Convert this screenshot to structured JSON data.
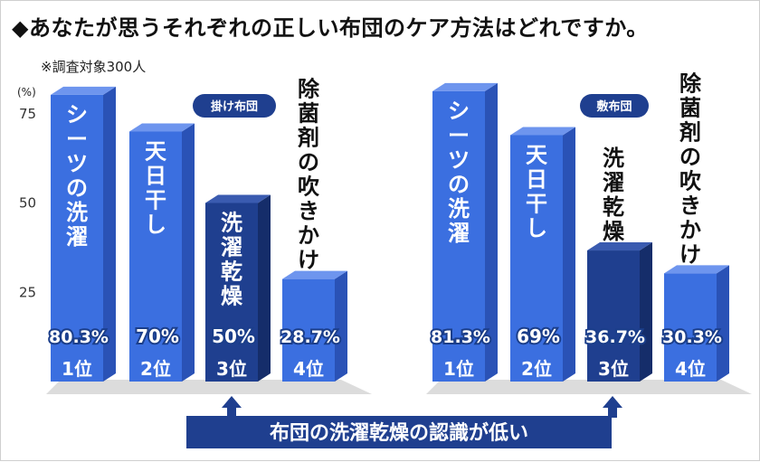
{
  "title": "◆あなたが思うそれぞれの正しい布団のケア方法はどれですか。",
  "subtitle": "※調査対象300人",
  "unit_label": "(%)",
  "banner": "布団の洗濯乾燥の認識が低い",
  "colors": {
    "bar": "#3b6fe0",
    "bar_side": "#2a52b6",
    "bar_top": "#6e95ee",
    "dark_bar": "#1f3f8f",
    "dark_side": "#152d6a",
    "dark_top": "#3a5bb0",
    "floor": "#dcdcdc",
    "banner": "#1f3f8f",
    "pill": "#1f3f8f"
  },
  "chart_data": [
    {
      "type": "bar",
      "panel_label": "掛け布団",
      "ylim": [
        0,
        100
      ],
      "yticks": [
        25,
        50,
        75
      ],
      "categories": [
        "シーツの洗濯",
        "天日干し",
        "洗濯乾燥",
        "除菌剤の吹きかけ"
      ],
      "values": [
        80.3,
        70,
        50,
        28.7
      ],
      "value_labels": [
        "80.3%",
        "70%",
        "50%",
        "28.7%"
      ],
      "ranks": [
        "1位",
        "2位",
        "3位",
        "4位"
      ],
      "highlight_index": 2
    },
    {
      "type": "bar",
      "panel_label": "敷布団",
      "ylim": [
        0,
        100
      ],
      "yticks": [
        25,
        50,
        75
      ],
      "categories": [
        "シーツの洗濯",
        "天日干し",
        "洗濯乾燥",
        "除菌剤の吹きかけ"
      ],
      "values": [
        81.3,
        69,
        36.7,
        30.3
      ],
      "value_labels": [
        "81.3%",
        "69%",
        "36.7%",
        "30.3%"
      ],
      "ranks": [
        "1位",
        "2位",
        "3位",
        "4位"
      ],
      "highlight_index": 2
    }
  ]
}
